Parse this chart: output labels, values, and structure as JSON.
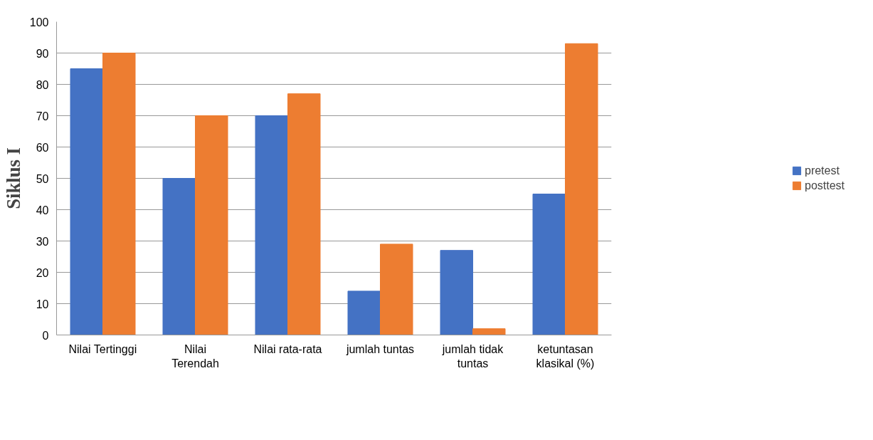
{
  "chart_data": {
    "type": "bar",
    "ylabel": "Siklus I",
    "categories": [
      "Nilai Tertinggi",
      "Nilai\nTerendah",
      "Nilai rata-rata",
      "jumlah tuntas",
      "jumlah tidak\ntuntas",
      "ketuntasan\nklasikal (%)"
    ],
    "series": [
      {
        "name": "pretest",
        "color": "#4472c4",
        "values": [
          85,
          50,
          70,
          14,
          27,
          45
        ]
      },
      {
        "name": "posttest",
        "color": "#ed7d31",
        "values": [
          90,
          70,
          77,
          29,
          2,
          93
        ]
      }
    ],
    "ylim": [
      0,
      100
    ],
    "yticks": [
      0,
      10,
      20,
      30,
      40,
      50,
      60,
      70,
      80,
      90,
      100
    ],
    "grid": "y",
    "legend": "right"
  }
}
